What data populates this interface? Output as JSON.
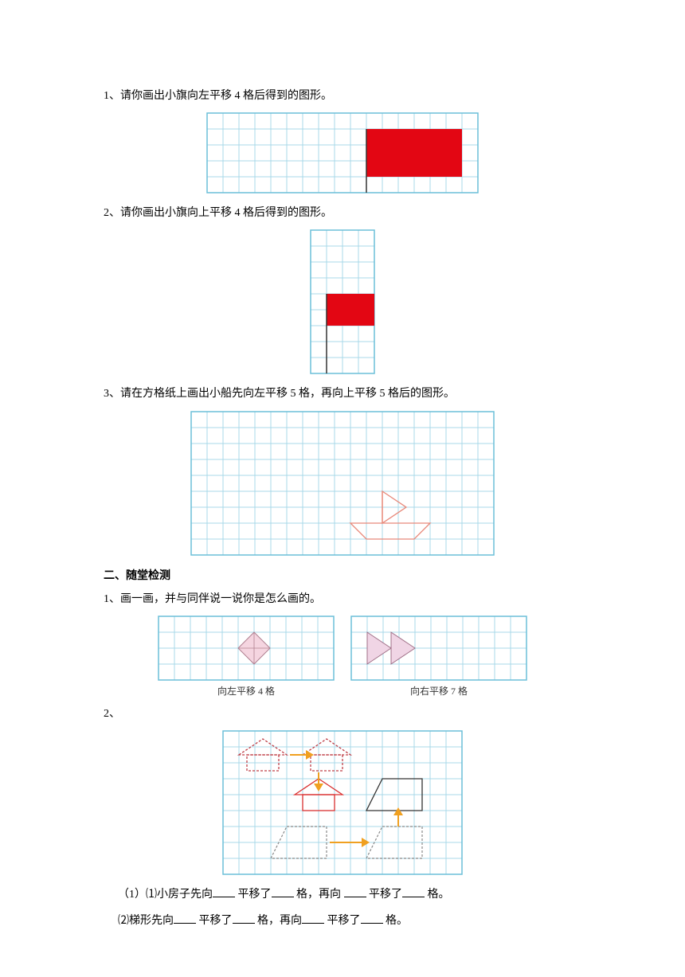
{
  "q1": {
    "text": "1、请你画出小旗向左平移 4 格后得到的图形。"
  },
  "q2": {
    "text": "2、请你画出小旗向上平移 4 格后得到的图形。"
  },
  "q3": {
    "text": "3、请在方格纸上画出小船先向左平移 5 格，再向上平移 5 格后的图形。"
  },
  "section2": {
    "title": "二、随堂检测"
  },
  "q4": {
    "text": "1、画一画，并与同伴说一说你是怎么画的。"
  },
  "q4a_caption": "向左平移 4 格",
  "q4b_caption": "向右平移 7 格",
  "q5": {
    "text": "2、"
  },
  "q5_sub1_parts": [
    "（1）⑴小房子先向",
    "平移了",
    " 格，再向 ",
    "平移了",
    "格。"
  ],
  "q5_sub2_parts": [
    "⑵梯形先向",
    "平移了",
    " 格，再向",
    "平移了",
    " 格。"
  ],
  "grid": {
    "cell": 20,
    "line_color": "#a8d8e8",
    "border_color": "#6bbfd8",
    "fill_red": "#e30613",
    "boat_color": "#e8897a",
    "diamond_fill": "#f5d5e0",
    "tri_fill": "#f0d5e5",
    "house_solid": "#d93030",
    "house_dash": "#c04048",
    "trap_solid": "#333333",
    "trap_dash": "#888888",
    "arrow_color": "#f0a020"
  }
}
